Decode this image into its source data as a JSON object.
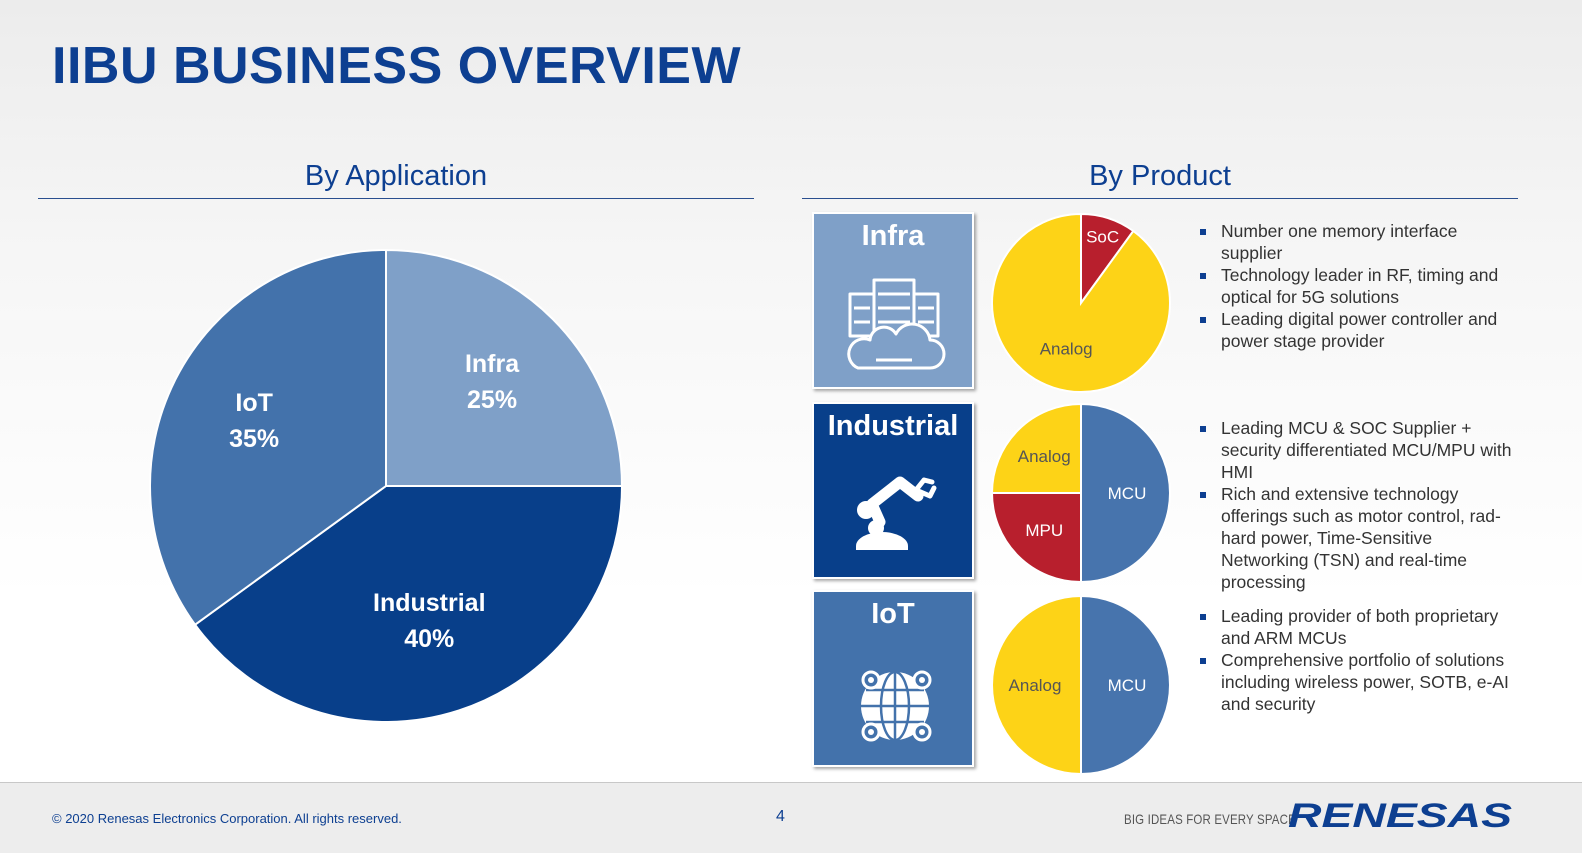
{
  "page": {
    "title": "IIBU BUSINESS OVERVIEW",
    "footer": {
      "copyright": "© 2020 Renesas Electronics Corporation. All rights reserved.",
      "page_number": "4",
      "tagline": "BIG IDEAS FOR EVERY SPACE",
      "logo_text": "RENESAS"
    }
  },
  "colors": {
    "brand_blue": "#0d3f91",
    "infra": "#7fa0c8",
    "industrial": "#083f8a",
    "iot": "#4372ab",
    "yellow": "#fdd317",
    "red": "#b81f2d",
    "mcu_blue": "#4774ad"
  },
  "icons": {
    "infra": "server-cloud-icon",
    "industrial": "robot-arm-icon",
    "iot": "globe-network-icon"
  },
  "chart_data": [
    {
      "type": "pie",
      "title": "By Application",
      "slices": [
        {
          "label": "Infra",
          "value": 25,
          "display": "25%",
          "color": "#7fa0c8"
        },
        {
          "label": "Industrial",
          "value": 40,
          "display": "40%",
          "color": "#083f8a"
        },
        {
          "label": "IoT",
          "value": 35,
          "display": "35%",
          "color": "#4372ab"
        }
      ]
    },
    {
      "type": "pie",
      "title": "By Product",
      "segment": "Infra",
      "slices": [
        {
          "label": "SoC",
          "value": 10,
          "color": "#b81f2d"
        },
        {
          "label": "Analog",
          "value": 90,
          "color": "#fdd317"
        }
      ],
      "bullets": [
        "Number one memory interface supplier",
        "Technology leader in RF, timing and optical  for 5G  solutions",
        "Leading digital power controller and power stage provider"
      ]
    },
    {
      "type": "pie",
      "segment": "Industrial",
      "slices": [
        {
          "label": "MCU",
          "value": 50,
          "color": "#4774ad"
        },
        {
          "label": "MPU",
          "value": 25,
          "color": "#b81f2d"
        },
        {
          "label": "Analog",
          "value": 25,
          "color": "#fdd317"
        }
      ],
      "bullets": [
        "Leading MCU & SOC Supplier + security differentiated MCU/MPU with HMI",
        "Rich and extensive technology offerings such as motor control, rad-hard power, Time-Sensitive Networking (TSN) and real-time processing"
      ]
    },
    {
      "type": "pie",
      "segment": "IoT",
      "slices": [
        {
          "label": "MCU",
          "value": 50,
          "color": "#4774ad"
        },
        {
          "label": "Analog",
          "value": 50,
          "color": "#fdd317"
        }
      ],
      "bullets": [
        "Leading provider of both proprietary and ARM MCUs",
        "Comprehensive portfolio of solutions including wireless power, SOTB, e-AI and security"
      ]
    }
  ]
}
